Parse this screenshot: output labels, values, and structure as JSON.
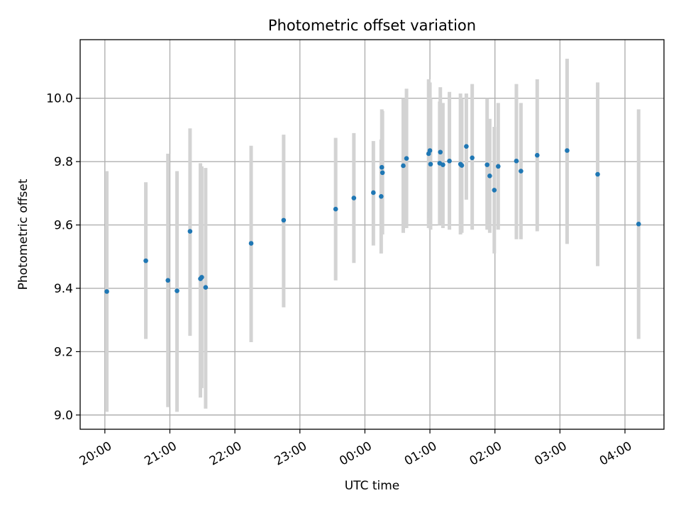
{
  "chart_data": {
    "type": "scatter",
    "title": "Photometric offset variation",
    "xlabel": "UTC time",
    "ylabel": "Photometric offset",
    "x_unit": "hours (UTC, continuing past midnight)",
    "xlim": [
      19.62,
      28.6
    ],
    "ylim": [
      8.955,
      10.185
    ],
    "x_ticks": [
      {
        "value": 20,
        "label": "20:00"
      },
      {
        "value": 21,
        "label": "21:00"
      },
      {
        "value": 22,
        "label": "22:00"
      },
      {
        "value": 23,
        "label": "23:00"
      },
      {
        "value": 24,
        "label": "00:00"
      },
      {
        "value": 25,
        "label": "01:00"
      },
      {
        "value": 26,
        "label": "02:00"
      },
      {
        "value": 27,
        "label": "03:00"
      },
      {
        "value": 28,
        "label": "04:00"
      }
    ],
    "y_ticks": [
      {
        "value": 9.0,
        "label": "9.0"
      },
      {
        "value": 9.2,
        "label": "9.2"
      },
      {
        "value": 9.4,
        "label": "9.4"
      },
      {
        "value": 9.6,
        "label": "9.6"
      },
      {
        "value": 9.8,
        "label": "9.8"
      },
      {
        "value": 10.0,
        "label": "10.0"
      }
    ],
    "grid": true,
    "colors": {
      "point": "#1f77b4",
      "errorbar": "#d3d3d3"
    },
    "points": [
      {
        "x": 20.03,
        "y": 9.39,
        "lo": 9.01,
        "hi": 9.77
      },
      {
        "x": 20.63,
        "y": 9.487,
        "lo": 9.24,
        "hi": 9.735
      },
      {
        "x": 20.97,
        "y": 9.425,
        "lo": 9.025,
        "hi": 9.825
      },
      {
        "x": 21.11,
        "y": 9.392,
        "lo": 9.01,
        "hi": 9.77
      },
      {
        "x": 21.31,
        "y": 9.58,
        "lo": 9.25,
        "hi": 9.905
      },
      {
        "x": 21.47,
        "y": 9.43,
        "lo": 9.055,
        "hi": 9.795
      },
      {
        "x": 21.49,
        "y": 9.435,
        "lo": 9.085,
        "hi": 9.785
      },
      {
        "x": 21.55,
        "y": 9.403,
        "lo": 9.02,
        "hi": 9.78
      },
      {
        "x": 22.25,
        "y": 9.542,
        "lo": 9.23,
        "hi": 9.85
      },
      {
        "x": 22.75,
        "y": 9.615,
        "lo": 9.34,
        "hi": 9.885
      },
      {
        "x": 23.55,
        "y": 9.65,
        "lo": 9.425,
        "hi": 9.875
      },
      {
        "x": 23.83,
        "y": 9.685,
        "lo": 9.48,
        "hi": 9.89
      },
      {
        "x": 24.13,
        "y": 9.702,
        "lo": 9.535,
        "hi": 9.865
      },
      {
        "x": 24.25,
        "y": 9.69,
        "lo": 9.51,
        "hi": 9.87
      },
      {
        "x": 24.26,
        "y": 9.782,
        "lo": 9.6,
        "hi": 9.965
      },
      {
        "x": 24.27,
        "y": 9.765,
        "lo": 9.57,
        "hi": 9.96
      },
      {
        "x": 24.59,
        "y": 9.787,
        "lo": 9.575,
        "hi": 10.0
      },
      {
        "x": 24.64,
        "y": 9.81,
        "lo": 9.59,
        "hi": 10.03
      },
      {
        "x": 24.98,
        "y": 9.825,
        "lo": 9.59,
        "hi": 10.06
      },
      {
        "x": 25.0,
        "y": 9.835,
        "lo": 9.62,
        "hi": 10.05
      },
      {
        "x": 25.01,
        "y": 9.792,
        "lo": 9.585,
        "hi": 10.0
      },
      {
        "x": 25.15,
        "y": 9.795,
        "lo": 9.6,
        "hi": 9.99
      },
      {
        "x": 25.16,
        "y": 9.83,
        "lo": 9.625,
        "hi": 10.035
      },
      {
        "x": 25.2,
        "y": 9.79,
        "lo": 9.59,
        "hi": 9.985
      },
      {
        "x": 25.3,
        "y": 9.802,
        "lo": 9.585,
        "hi": 10.02
      },
      {
        "x": 25.47,
        "y": 9.792,
        "lo": 9.57,
        "hi": 10.015
      },
      {
        "x": 25.49,
        "y": 9.788,
        "lo": 9.575,
        "hi": 10.0
      },
      {
        "x": 25.56,
        "y": 9.848,
        "lo": 9.68,
        "hi": 10.015
      },
      {
        "x": 25.65,
        "y": 9.812,
        "lo": 9.585,
        "hi": 10.045
      },
      {
        "x": 25.88,
        "y": 9.79,
        "lo": 9.585,
        "hi": 10.0
      },
      {
        "x": 25.92,
        "y": 9.755,
        "lo": 9.575,
        "hi": 9.935
      },
      {
        "x": 25.99,
        "y": 9.71,
        "lo": 9.51,
        "hi": 9.91
      },
      {
        "x": 26.05,
        "y": 9.785,
        "lo": 9.585,
        "hi": 9.985
      },
      {
        "x": 26.33,
        "y": 9.802,
        "lo": 9.555,
        "hi": 10.045
      },
      {
        "x": 26.4,
        "y": 9.77,
        "lo": 9.555,
        "hi": 9.985
      },
      {
        "x": 26.65,
        "y": 9.82,
        "lo": 9.58,
        "hi": 10.06
      },
      {
        "x": 27.11,
        "y": 9.835,
        "lo": 9.54,
        "hi": 10.125
      },
      {
        "x": 27.58,
        "y": 9.76,
        "lo": 9.47,
        "hi": 10.05
      },
      {
        "x": 28.21,
        "y": 9.603,
        "lo": 9.24,
        "hi": 9.965
      }
    ]
  }
}
